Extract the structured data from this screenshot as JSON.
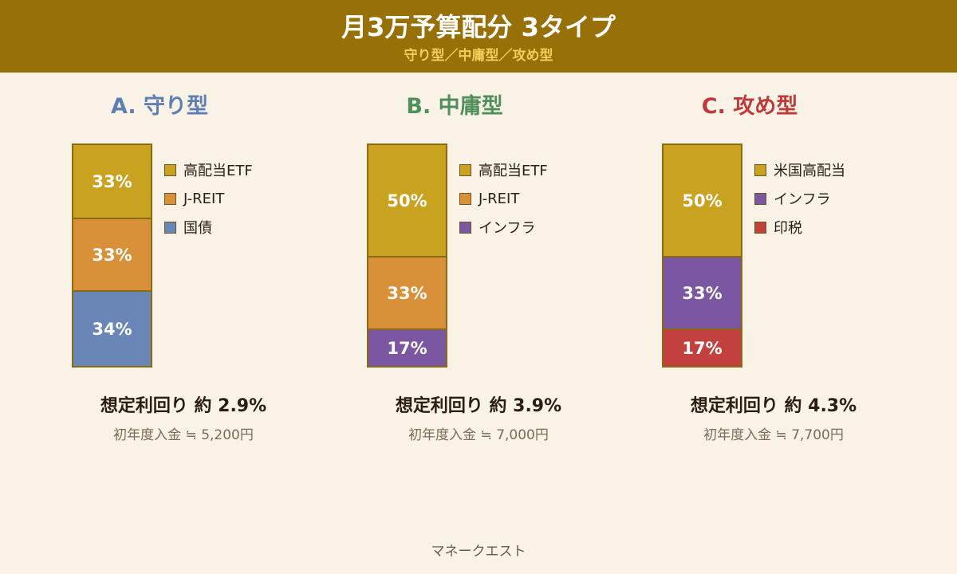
{
  "header": {
    "title": "月3万予算配分 3タイプ",
    "subtitle": "守り型／中庸型／攻め型"
  },
  "colors": {
    "header_bg": "#977108",
    "page_bg": "#f9f2e7",
    "high_dividend": "#c9a21f",
    "jreit": "#d99139",
    "bonds": "#6a86b6",
    "infra": "#7a57a0",
    "stamp_tax": "#c2403e"
  },
  "chart_data": [
    {
      "type": "bar",
      "stacked": true,
      "title": "A. 守り型",
      "title_color": "#5f7fb4",
      "series": [
        {
          "name": "高配当ETF",
          "value": 33,
          "label": "33%",
          "color": "#c9a21f"
        },
        {
          "name": "J-REIT",
          "value": 33,
          "label": "33%",
          "color": "#d99139"
        },
        {
          "name": "国債",
          "value": 34,
          "label": "34%",
          "color": "#6a86b6"
        }
      ],
      "yield_text": "想定利回り 約 2.9%",
      "deposit_text": "初年度入金 ≒ 5,200円"
    },
    {
      "type": "bar",
      "stacked": true,
      "title": "B. 中庸型",
      "title_color": "#4e8f5a",
      "series": [
        {
          "name": "高配当ETF",
          "value": 50,
          "label": "50%",
          "color": "#c9a21f"
        },
        {
          "name": "J-REIT",
          "value": 33,
          "label": "33%",
          "color": "#d99139"
        },
        {
          "name": "インフラ",
          "value": 17,
          "label": "17%",
          "color": "#7a57a0"
        }
      ],
      "yield_text": "想定利回り 約 3.9%",
      "deposit_text": "初年度入金 ≒ 7,000円"
    },
    {
      "type": "bar",
      "stacked": true,
      "title": "C. 攻め型",
      "title_color": "#be3b3b",
      "series": [
        {
          "name": "米国高配当",
          "value": 50,
          "label": "50%",
          "color": "#c9a21f"
        },
        {
          "name": "インフラ",
          "value": 33,
          "label": "33%",
          "color": "#7a57a0"
        },
        {
          "name": "印税",
          "value": 17,
          "label": "17%",
          "color": "#c2403e"
        }
      ],
      "yield_text": "想定利回り 約 4.3%",
      "deposit_text": "初年度入金 ≒ 7,700円"
    }
  ],
  "footer": {
    "brand": "マネークエスト"
  }
}
